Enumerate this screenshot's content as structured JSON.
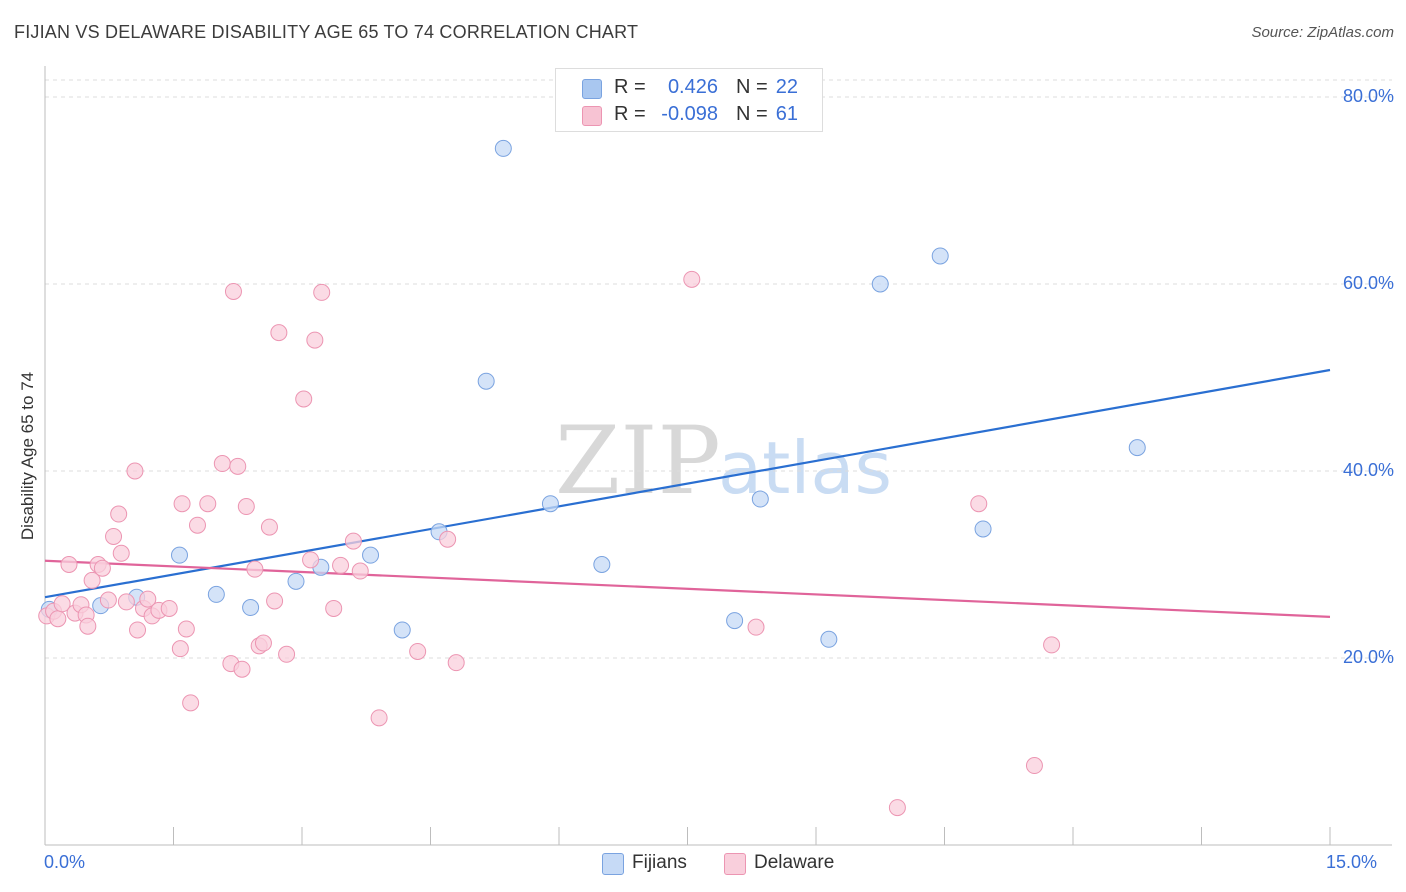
{
  "header": {
    "title": "FIJIAN VS DELAWARE DISABILITY AGE 65 TO 74 CORRELATION CHART",
    "source": "Source: ZipAtlas.com"
  },
  "watermark": {
    "zip": "ZIP",
    "atlas": "atlas"
  },
  "stats_legend": {
    "rows": [
      {
        "r_label": "R =",
        "r_value": "0.426",
        "n_label": "N =",
        "n_value": "22",
        "color": "#a9c7f0",
        "border": "#7aa3e0"
      },
      {
        "r_label": "R =",
        "r_value": "-0.098",
        "n_label": "N =",
        "n_value": "61",
        "color": "#f7c3d3",
        "border": "#ec95b2"
      }
    ]
  },
  "bottom_legend": {
    "items": [
      {
        "label": "Fijians",
        "color": "#c6daf6",
        "border": "#7aa3e0"
      },
      {
        "label": "Delaware",
        "color": "#f9cfdc",
        "border": "#ec95b2"
      }
    ]
  },
  "chart_data": {
    "type": "scatter",
    "title": "FIJIAN VS DELAWARE DISABILITY AGE 65 TO 74 CORRELATION CHART",
    "xlabel": "",
    "ylabel": "Disability Age 65 to 74",
    "xlim": [
      0,
      15
    ],
    "ylim": [
      0,
      80
    ],
    "x_tick_labels": [
      "0.0%",
      "15.0%"
    ],
    "y_ticks": [
      20,
      40,
      60,
      80
    ],
    "y_tick_labels": [
      "20.0%",
      "40.0%",
      "60.0%",
      "80.0%"
    ],
    "grid": "horizontal dashed",
    "series": [
      {
        "name": "Fijians",
        "color": "#7aa3e0",
        "fill": "#c6daf6",
        "line_color": "#2a6fd1",
        "trend": [
          [
            0,
            26.5
          ],
          [
            15,
            50.8
          ]
        ],
        "points": [
          [
            0.05,
            25.2
          ],
          [
            0.65,
            25.6
          ],
          [
            1.07,
            26.5
          ],
          [
            1.57,
            31.0
          ],
          [
            2.0,
            26.8
          ],
          [
            2.4,
            25.4
          ],
          [
            2.93,
            28.2
          ],
          [
            3.22,
            29.7
          ],
          [
            3.8,
            31.0
          ],
          [
            4.17,
            23.0
          ],
          [
            4.6,
            33.5
          ],
          [
            5.15,
            49.6
          ],
          [
            5.35,
            74.5
          ],
          [
            5.9,
            36.5
          ],
          [
            6.5,
            30.0
          ],
          [
            8.05,
            24.0
          ],
          [
            8.35,
            37.0
          ],
          [
            9.15,
            22.0
          ],
          [
            9.75,
            60.0
          ],
          [
            10.45,
            63.0
          ],
          [
            10.95,
            33.8
          ],
          [
            12.75,
            42.5
          ]
        ]
      },
      {
        "name": "Delaware",
        "color": "#ec95b2",
        "fill": "#f9cfdc",
        "line_color": "#e0649a",
        "trend": [
          [
            0,
            30.4
          ],
          [
            15,
            24.4
          ]
        ],
        "points": [
          [
            0.02,
            24.5
          ],
          [
            0.1,
            25.0
          ],
          [
            0.15,
            24.2
          ],
          [
            0.2,
            25.8
          ],
          [
            0.28,
            30.0
          ],
          [
            0.35,
            24.8
          ],
          [
            0.42,
            25.7
          ],
          [
            0.48,
            24.6
          ],
          [
            0.5,
            23.4
          ],
          [
            0.55,
            28.3
          ],
          [
            0.62,
            30.0
          ],
          [
            0.67,
            29.6
          ],
          [
            0.74,
            26.2
          ],
          [
            0.8,
            33.0
          ],
          [
            0.86,
            35.4
          ],
          [
            0.89,
            31.2
          ],
          [
            0.95,
            26.0
          ],
          [
            1.05,
            40.0
          ],
          [
            1.08,
            23.0
          ],
          [
            1.15,
            25.3
          ],
          [
            1.2,
            26.3
          ],
          [
            1.25,
            24.5
          ],
          [
            1.33,
            25.1
          ],
          [
            1.45,
            25.3
          ],
          [
            1.58,
            21.0
          ],
          [
            1.6,
            36.5
          ],
          [
            1.65,
            23.1
          ],
          [
            1.7,
            15.2
          ],
          [
            1.78,
            34.2
          ],
          [
            1.9,
            36.5
          ],
          [
            2.07,
            40.8
          ],
          [
            2.17,
            19.4
          ],
          [
            2.2,
            59.2
          ],
          [
            2.25,
            40.5
          ],
          [
            2.3,
            18.8
          ],
          [
            2.35,
            36.2
          ],
          [
            2.45,
            29.5
          ],
          [
            2.5,
            21.3
          ],
          [
            2.55,
            21.6
          ],
          [
            2.62,
            34.0
          ],
          [
            2.68,
            26.1
          ],
          [
            2.73,
            54.8
          ],
          [
            2.82,
            20.4
          ],
          [
            3.02,
            47.7
          ],
          [
            3.1,
            30.5
          ],
          [
            3.15,
            54.0
          ],
          [
            3.23,
            59.1
          ],
          [
            3.37,
            25.3
          ],
          [
            3.45,
            29.9
          ],
          [
            3.6,
            32.5
          ],
          [
            3.68,
            29.3
          ],
          [
            3.9,
            13.6
          ],
          [
            4.35,
            20.7
          ],
          [
            4.7,
            32.7
          ],
          [
            4.8,
            19.5
          ],
          [
            7.55,
            60.5
          ],
          [
            8.3,
            23.3
          ],
          [
            9.95,
            4.0
          ],
          [
            10.9,
            36.5
          ],
          [
            11.55,
            8.5
          ],
          [
            11.75,
            21.4
          ]
        ]
      }
    ]
  }
}
